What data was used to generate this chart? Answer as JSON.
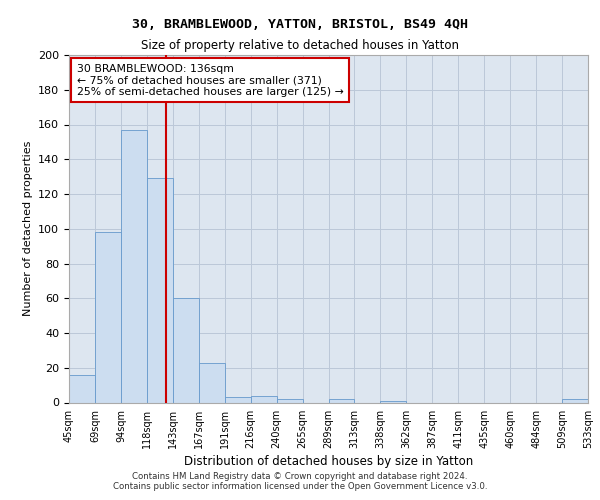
{
  "title_line1": "30, BRAMBLEWOOD, YATTON, BRISTOL, BS49 4QH",
  "title_line2": "Size of property relative to detached houses in Yatton",
  "xlabel": "Distribution of detached houses by size in Yatton",
  "ylabel": "Number of detached properties",
  "bar_values": [
    16,
    98,
    157,
    129,
    60,
    23,
    3,
    4,
    2,
    0,
    2,
    0,
    1,
    0,
    0,
    0,
    0,
    0,
    0,
    2
  ],
  "tick_labels": [
    "45sqm",
    "69sqm",
    "94sqm",
    "118sqm",
    "143sqm",
    "167sqm",
    "191sqm",
    "216sqm",
    "240sqm",
    "265sqm",
    "289sqm",
    "313sqm",
    "338sqm",
    "362sqm",
    "387sqm",
    "411sqm",
    "435sqm",
    "460sqm",
    "484sqm",
    "509sqm",
    "533sqm"
  ],
  "bar_color": "#ccddf0",
  "bar_edge_color": "#6699cc",
  "grid_color": "#bbc8d8",
  "bg_color": "#dde6f0",
  "property_bar_index": 3,
  "property_line_color": "#cc0000",
  "annotation_text": "30 BRAMBLEWOOD: 136sqm\n← 75% of detached houses are smaller (371)\n25% of semi-detached houses are larger (125) →",
  "annotation_box_color": "#ffffff",
  "annotation_box_edge": "#cc0000",
  "ylim": [
    0,
    200
  ],
  "yticks": [
    0,
    20,
    40,
    60,
    80,
    100,
    120,
    140,
    160,
    180,
    200
  ],
  "footer_line1": "Contains HM Land Registry data © Crown copyright and database right 2024.",
  "footer_line2": "Contains public sector information licensed under the Open Government Licence v3.0."
}
